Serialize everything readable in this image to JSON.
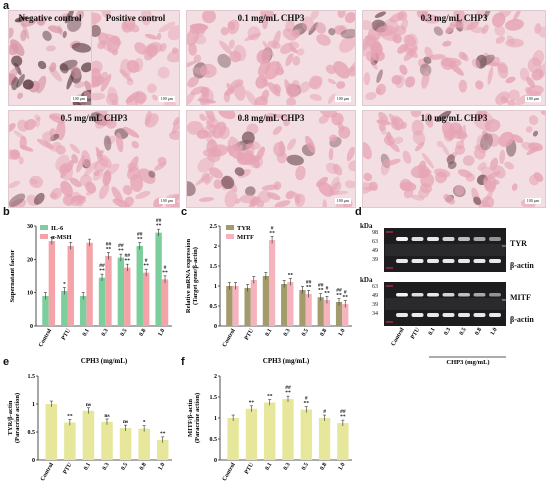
{
  "panel_labels": {
    "a": "a",
    "b": "b",
    "c": "c",
    "d": "d",
    "e": "e",
    "f": "f"
  },
  "micrographs": [
    {
      "title": "Negative control",
      "scale": "100 μm"
    },
    {
      "title": "Positive control",
      "scale": "100 μm"
    },
    {
      "title": "0.1 mg/mL CHP3",
      "scale": "100 μm"
    },
    {
      "title": "0.3 mg/mL CHP3",
      "scale": "100 μm"
    },
    {
      "title": "0.5 mg/mL CHP3",
      "scale": "100 μm"
    },
    {
      "title": "0.8 mg/mL CHP3",
      "scale": "100 μm"
    },
    {
      "title": "1.0 mg/mL CHP3",
      "scale": "100 μm"
    }
  ],
  "colors": {
    "green": "#7ccf9c",
    "pink": "#f4a3a8",
    "olive": "#a39b6b",
    "lightpink": "#f4b3bd",
    "yellow": "#e6e79a"
  },
  "chart_data": [
    {
      "id": "b",
      "type": "bar",
      "categories": [
        "Control",
        "PTU",
        "0.1",
        "0.3",
        "0.5",
        "0.8",
        "1.0"
      ],
      "series": [
        {
          "name": "IL-6",
          "values": [
            9,
            10.5,
            9,
            14.5,
            20.5,
            24,
            28
          ]
        },
        {
          "name": "α-MSH",
          "values": [
            25.5,
            24,
            25,
            21,
            17.5,
            16,
            14
          ]
        }
      ],
      "ylabel": "Supernatant factor",
      "xlabel": "CPH3  (mg/mL)",
      "ylim": [
        0,
        30
      ],
      "yticks": [
        0,
        10,
        20,
        30
      ],
      "annotations": [
        [
          "",
          ""
        ],
        [
          "*",
          ""
        ],
        [
          "",
          ""
        ],
        [
          "##\n**",
          "##\n**"
        ],
        [
          "##\n**",
          "##\n**"
        ],
        [
          "##\n**",
          "#\n**"
        ],
        [
          "##\n**",
          "#\n**"
        ]
      ],
      "legend": "top-left"
    },
    {
      "id": "c",
      "type": "bar",
      "categories": [
        "Control",
        "PTU",
        "0.1",
        "0.3",
        "0.5",
        "0.8",
        "1.0"
      ],
      "series": [
        {
          "name": "TYR",
          "values": [
            1.0,
            0.95,
            1.25,
            1.05,
            0.9,
            0.72,
            0.6
          ]
        },
        {
          "name": "MITF",
          "values": [
            1.0,
            1.15,
            2.15,
            1.1,
            0.8,
            0.65,
            0.55
          ]
        }
      ],
      "ylabel": "Relative mRNA expression (Target gene/β-actin)",
      "xlabel": "CPH3  (mg/mL)",
      "ylim": [
        0,
        2.5
      ],
      "yticks": [
        0,
        0.5,
        1.0,
        1.5,
        2.0,
        2.5
      ],
      "annotations": [
        [
          "",
          ""
        ],
        [
          "",
          ""
        ],
        [
          "",
          "#\n**"
        ],
        [
          "",
          "**"
        ],
        [
          "",
          "##\n**"
        ],
        [
          "##\n**",
          "#\n**"
        ],
        [
          "##\n**",
          "#\n**"
        ]
      ],
      "legend": "top-left"
    },
    {
      "id": "e",
      "type": "bar",
      "categories": [
        "Control",
        "PTU",
        "0.1",
        "0.3",
        "0.5",
        "0.8",
        "1.0"
      ],
      "values": [
        1.0,
        0.67,
        0.88,
        0.68,
        0.57,
        0.56,
        0.36
      ],
      "annotations": [
        "",
        "**",
        "ns",
        "ns",
        "ns",
        "*",
        "**"
      ],
      "ylabel": "TYR/β-actin (Paracrine action)",
      "ylim": [
        0,
        1.5
      ],
      "yticks": [
        0,
        0.5,
        1.0,
        1.5
      ]
    },
    {
      "id": "f",
      "type": "bar",
      "categories": [
        "Control",
        "PTU",
        "0.1",
        "0.3",
        "0.5",
        "0.8",
        "1.0"
      ],
      "values": [
        1.0,
        1.22,
        1.37,
        1.45,
        1.2,
        1.0,
        0.88
      ],
      "annotations": [
        "",
        "**",
        "**",
        "##\n**",
        "#\n**",
        "#",
        "##\n**"
      ],
      "ylabel": "MITF/β-actin (Paracrine action)",
      "ylim": [
        0,
        2.0
      ],
      "yticks": [
        0,
        0.5,
        1.0,
        1.5,
        2.0
      ]
    }
  ],
  "blot": {
    "kda": "kDa",
    "top_markers": [
      "98",
      "63",
      "49",
      "39"
    ],
    "bottom_markers": [
      "63",
      "49",
      "39",
      "34"
    ],
    "top_labels": [
      "TYR",
      "β-actin"
    ],
    "bottom_labels": [
      "MITF",
      "β-actin"
    ],
    "lanes": [
      "Control",
      "PTU",
      "0.1",
      "0.3",
      "0.5",
      "0.8",
      "1.0"
    ],
    "group_label": "CHP3 (mg/mL)"
  }
}
